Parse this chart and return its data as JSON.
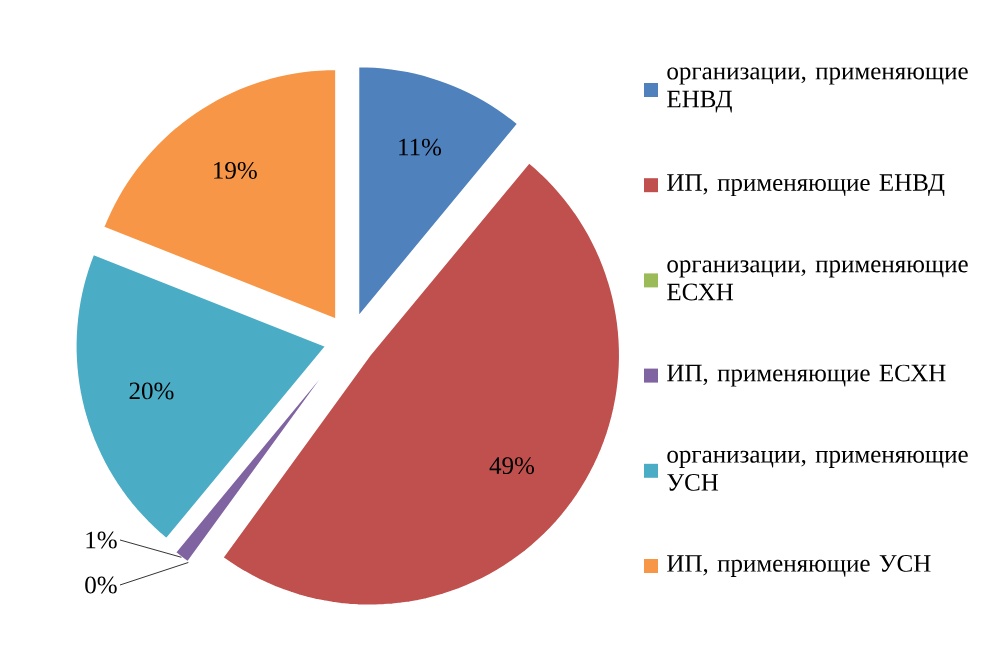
{
  "chart_data": {
    "type": "pie",
    "categories": [
      "организации, применяющие ЕНВД",
      "ИП, применяющие ЕНВД",
      "организации, применяющие ЕСХН",
      "ИП, применяющие ЕСХН",
      "организации, применяющие УСН",
      "ИП, применяющие УСН"
    ],
    "values": [
      11,
      49,
      0,
      1,
      20,
      19
    ],
    "value_labels": [
      "11%",
      "49%",
      "0%",
      "1%",
      "20%",
      "19%"
    ],
    "colors": [
      "#4f81bd",
      "#c0504d",
      "#9bbb59",
      "#8064a2",
      "#4bacc6",
      "#f79646"
    ],
    "legend": "right"
  }
}
